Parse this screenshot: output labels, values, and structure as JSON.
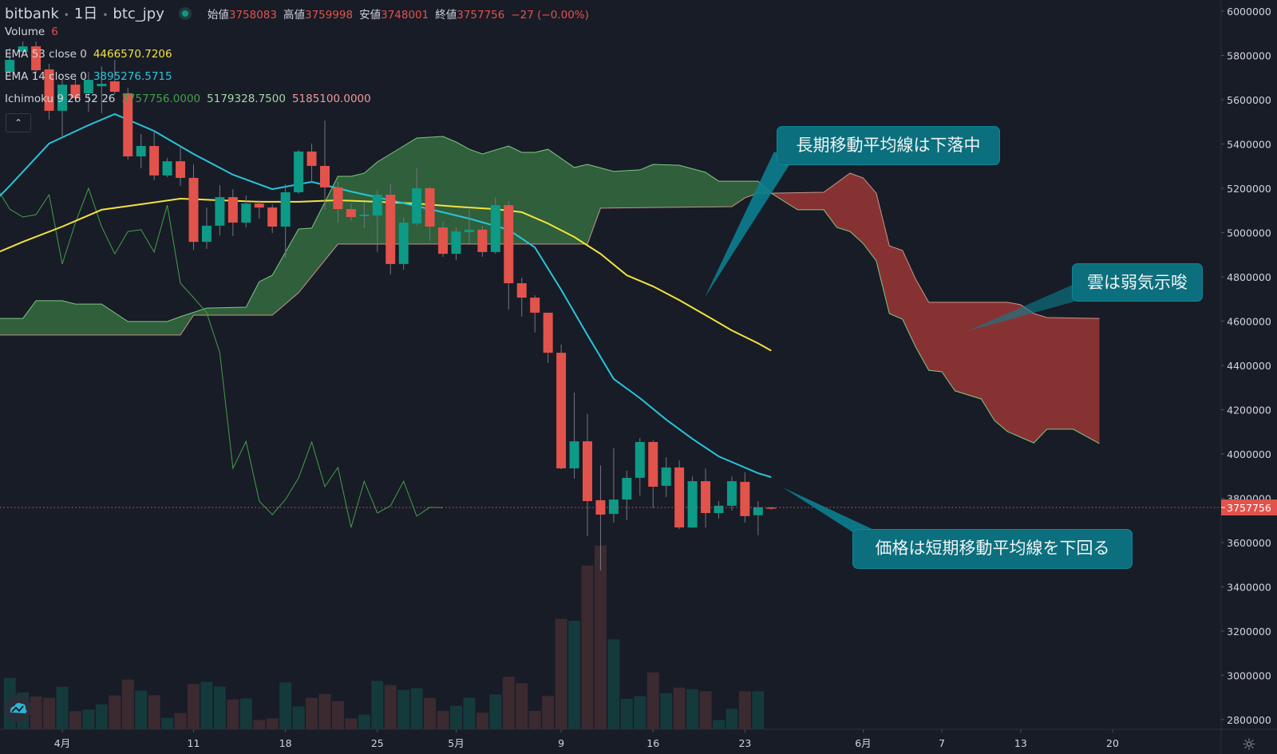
{
  "header": {
    "exchange": "bitbank",
    "interval": "1日",
    "symbol": "btc_jpy",
    "open_label": "始値",
    "open": "3758083",
    "high_label": "高値",
    "high": "3759998",
    "low_label": "安値",
    "low": "3748001",
    "close_label": "終値",
    "close": "3757756",
    "change": "−27 (−0.00%)"
  },
  "legend": {
    "volume": {
      "label": "Volume",
      "value": "6"
    },
    "ema53": {
      "label": "EMA 53 close 0",
      "value": "4466570.7206",
      "color": "#f5e33b"
    },
    "ema14": {
      "label": "EMA 14 close 0",
      "value": "3895276.5715",
      "color": "#26c6da"
    },
    "ichimoku": {
      "label": "Ichimoku 9 26 52 26",
      "v1": "3757756.0000",
      "v2": "5179328.7500",
      "v3": "5185100.0000"
    },
    "collapse_icon": "chevron-up-icon"
  },
  "annotations": {
    "a1": "長期移動平均線は下落中",
    "a2": "雲は弱気示唆",
    "a3": "価格は短期移動平均線を下回る"
  },
  "price_axis": {
    "labels": [
      "6000000",
      "5800000",
      "5600000",
      "5400000",
      "5200000",
      "5000000",
      "4800000",
      "4600000",
      "4400000",
      "4200000",
      "4000000",
      "3800000",
      "3600000",
      "3400000",
      "3200000",
      "3000000",
      "2800000"
    ],
    "last_price": "3757756"
  },
  "time_axis": [
    {
      "label": "4月",
      "date": "04-01"
    },
    {
      "label": "11",
      "date": "04-11"
    },
    {
      "label": "18",
      "date": "04-18"
    },
    {
      "label": "25",
      "date": "04-25"
    },
    {
      "label": "5月",
      "date": "05-01"
    },
    {
      "label": "9",
      "date": "05-09"
    },
    {
      "label": "16",
      "date": "05-16"
    },
    {
      "label": "23",
      "date": "05-23"
    },
    {
      "label": "6月",
      "date": "06-01"
    },
    {
      "label": "7",
      "date": "06-07"
    },
    {
      "label": "13",
      "date": "06-13"
    },
    {
      "label": "20",
      "date": "06-20"
    }
  ],
  "colors": {
    "up": "#0d9a86",
    "down": "#e2534b",
    "vol_up": "#143a3c",
    "vol_down": "#3c2a31",
    "cloud_bull": "#2f5f3b",
    "cloud_bear": "#873232",
    "span_a": "#81c784",
    "span_b": "#c9958a",
    "chikou": "#43a047",
    "ema14": "#26c6da",
    "ema53": "#f5e33b",
    "background": "#181c27"
  },
  "chart_data": {
    "type": "candlestick",
    "title": "",
    "ylim": [
      2800000,
      6000000
    ],
    "grid": false,
    "columns": [
      "date",
      "open",
      "high",
      "low",
      "close",
      "volume_relative"
    ],
    "candles": [
      [
        "03-28",
        5726000,
        5834000,
        5708000,
        5780000,
        193
      ],
      [
        "03-29",
        5816000,
        5863000,
        5798000,
        5841000,
        138
      ],
      [
        "03-30",
        5841000,
        5863000,
        5719000,
        5733000,
        123
      ],
      [
        "03-31",
        5737000,
        5762000,
        5510000,
        5550000,
        118
      ],
      [
        "04-01",
        5550000,
        5690000,
        5431000,
        5668000,
        160
      ],
      [
        "04-02",
        5668000,
        5697000,
        5589000,
        5607000,
        68
      ],
      [
        "04-03",
        5629000,
        5726000,
        5546000,
        5690000,
        74
      ],
      [
        "04-04",
        5661000,
        5751000,
        5539000,
        5672000,
        94
      ],
      [
        "04-05",
        5683000,
        5780000,
        5625000,
        5636000,
        127
      ],
      [
        "04-06",
        5629000,
        5654000,
        5330000,
        5344000,
        187
      ],
      [
        "04-07",
        5344000,
        5445000,
        5290000,
        5391000,
        145
      ],
      [
        "04-08",
        5391000,
        5463000,
        5236000,
        5258000,
        128
      ],
      [
        "04-09",
        5258000,
        5337000,
        5250000,
        5322000,
        43
      ],
      [
        "04-10",
        5322000,
        5391000,
        5211000,
        5247000,
        61
      ],
      [
        "04-11",
        5247000,
        5308000,
        4922000,
        4958000,
        170
      ],
      [
        "04-12",
        4958000,
        5113000,
        4926000,
        5031000,
        178
      ],
      [
        "04-13",
        5031000,
        5214000,
        4987000,
        5160000,
        161
      ],
      [
        "04-14",
        5160000,
        5196000,
        4984000,
        5045000,
        112
      ],
      [
        "04-15",
        5045000,
        5167000,
        5023000,
        5131000,
        116
      ],
      [
        "04-16",
        5131000,
        5146000,
        5063000,
        5113000,
        35
      ],
      [
        "04-17",
        5113000,
        5128000,
        4998000,
        5027000,
        41
      ],
      [
        "04-18",
        5027000,
        5218000,
        4886000,
        5182000,
        176
      ],
      [
        "04-19",
        5182000,
        5373000,
        5175000,
        5366000,
        86
      ],
      [
        "04-20",
        5366000,
        5402000,
        5225000,
        5301000,
        118
      ],
      [
        "04-21",
        5301000,
        5506000,
        5103000,
        5204000,
        133
      ],
      [
        "04-22",
        5204000,
        5229000,
        5045000,
        5106000,
        106
      ],
      [
        "04-23",
        5106000,
        5131000,
        5052000,
        5070000,
        41
      ],
      [
        "04-24",
        5074000,
        5135000,
        5020000,
        5081000,
        55
      ],
      [
        "04-25",
        5077000,
        5193000,
        4912000,
        5171000,
        182
      ],
      [
        "04-26",
        5171000,
        5218000,
        4811000,
        4858000,
        166
      ],
      [
        "04-27",
        4858000,
        5067000,
        4832000,
        5045000,
        148
      ],
      [
        "04-28",
        5041000,
        5290000,
        5031000,
        5200000,
        154
      ],
      [
        "04-29",
        5200000,
        5207000,
        4962000,
        5027000,
        118
      ],
      [
        "04-30",
        5023000,
        5049000,
        4890000,
        4904000,
        69
      ],
      [
        "05-01",
        4904000,
        5023000,
        4876000,
        5005000,
        88
      ],
      [
        "05-02",
        5002000,
        5113000,
        4951000,
        5013000,
        119
      ],
      [
        "05-03",
        5013000,
        5031000,
        4890000,
        4912000,
        62
      ],
      [
        "05-04",
        4912000,
        5160000,
        4904000,
        5124000,
        131
      ],
      [
        "05-05",
        5124000,
        5142000,
        4652000,
        4771000,
        197
      ],
      [
        "05-06",
        4771000,
        4796000,
        4620000,
        4706000,
        173
      ],
      [
        "05-07",
        4706000,
        4717000,
        4548000,
        4638000,
        69
      ],
      [
        "05-08",
        4638000,
        4638000,
        4411000,
        4457000,
        125
      ],
      [
        "05-09",
        4457000,
        4494000,
        3931000,
        3935000,
        415
      ],
      [
        "05-10",
        3935000,
        4277000,
        3888000,
        4057000,
        408
      ],
      [
        "05-11",
        4057000,
        4180000,
        3629000,
        3787000,
        616
      ],
      [
        "05-12",
        3791000,
        3949000,
        3474000,
        3726000,
        691
      ],
      [
        "05-13",
        3729000,
        4026000,
        3690000,
        3794000,
        338
      ],
      [
        "05-14",
        3794000,
        3924000,
        3701000,
        3892000,
        114
      ],
      [
        "05-15",
        3892000,
        4072000,
        3812000,
        4054000,
        124
      ],
      [
        "05-16",
        4054000,
        4061000,
        3755000,
        3852000,
        214
      ],
      [
        "05-17",
        3856000,
        3985000,
        3805000,
        3939000,
        136
      ],
      [
        "05-18",
        3939000,
        3971000,
        3661000,
        3668000,
        157
      ],
      [
        "05-19",
        3668000,
        3899000,
        3665000,
        3877000,
        151
      ],
      [
        "05-20",
        3877000,
        3935000,
        3668000,
        3733000,
        143
      ],
      [
        "05-21",
        3733000,
        3787000,
        3708000,
        3766000,
        35
      ],
      [
        "05-22",
        3766000,
        3899000,
        3744000,
        3877000,
        77
      ],
      [
        "05-23",
        3874000,
        3917000,
        3690000,
        3719000,
        143
      ],
      [
        "05-24",
        3723000,
        3787000,
        3633000,
        3759000,
        143
      ],
      [
        "05-25",
        3758083,
        3759998,
        3748001,
        3757756,
        1
      ]
    ],
    "ema14": [
      [
        "03-27",
        5150000
      ],
      [
        "03-28",
        5211000
      ],
      [
        "03-31",
        5402000
      ],
      [
        "04-03",
        5485000
      ],
      [
        "04-05",
        5535000
      ],
      [
        "04-08",
        5459000
      ],
      [
        "04-11",
        5355000
      ],
      [
        "04-14",
        5261000
      ],
      [
        "04-17",
        5196000
      ],
      [
        "04-20",
        5229000
      ],
      [
        "04-23",
        5185000
      ],
      [
        "04-26",
        5146000
      ],
      [
        "04-29",
        5106000
      ],
      [
        "05-02",
        5063000
      ],
      [
        "05-05",
        5013000
      ],
      [
        "05-07",
        4933000
      ],
      [
        "05-09",
        4742000
      ],
      [
        "05-11",
        4537000
      ],
      [
        "05-13",
        4339000
      ],
      [
        "05-15",
        4252000
      ],
      [
        "05-17",
        4155000
      ],
      [
        "05-19",
        4068000
      ],
      [
        "05-21",
        3989000
      ],
      [
        "05-24",
        3913000
      ],
      [
        "05-25",
        3895277
      ]
    ],
    "ema53": [
      [
        "03-27",
        4908000
      ],
      [
        "03-29",
        4958000
      ],
      [
        "04-01",
        5027000
      ],
      [
        "04-04",
        5103000
      ],
      [
        "04-07",
        5128000
      ],
      [
        "04-10",
        5153000
      ],
      [
        "04-13",
        5146000
      ],
      [
        "04-16",
        5139000
      ],
      [
        "04-19",
        5139000
      ],
      [
        "04-22",
        5146000
      ],
      [
        "04-25",
        5139000
      ],
      [
        "04-28",
        5131000
      ],
      [
        "05-01",
        5117000
      ],
      [
        "05-04",
        5106000
      ],
      [
        "05-06",
        5092000
      ],
      [
        "05-08",
        5041000
      ],
      [
        "05-10",
        4980000
      ],
      [
        "05-12",
        4904000
      ],
      [
        "05-14",
        4807000
      ],
      [
        "05-16",
        4757000
      ],
      [
        "05-18",
        4695000
      ],
      [
        "05-20",
        4627000
      ],
      [
        "05-22",
        4558000
      ],
      [
        "05-24",
        4500000
      ],
      [
        "05-25",
        4466571
      ]
    ],
    "ichimoku_span_a": [
      [
        "03-27",
        4612000
      ],
      [
        "03-29",
        4612000
      ],
      [
        "03-30",
        4692000
      ],
      [
        "04-01",
        4692000
      ],
      [
        "04-02",
        4677000
      ],
      [
        "04-04",
        4677000
      ],
      [
        "04-06",
        4598000
      ],
      [
        "04-09",
        4598000
      ],
      [
        "04-10",
        4620000
      ],
      [
        "04-12",
        4659000
      ],
      [
        "04-15",
        4663000
      ],
      [
        "04-16",
        4778000
      ],
      [
        "04-17",
        4807000
      ],
      [
        "04-19",
        5016000
      ],
      [
        "04-20",
        5020000
      ],
      [
        "04-22",
        5254000
      ],
      [
        "04-23",
        5254000
      ],
      [
        "04-24",
        5268000
      ],
      [
        "04-25",
        5319000
      ],
      [
        "04-27",
        5391000
      ],
      [
        "04-28",
        5427000
      ],
      [
        "04-30",
        5434000
      ],
      [
        "05-01",
        5409000
      ],
      [
        "05-02",
        5376000
      ],
      [
        "05-03",
        5355000
      ],
      [
        "05-05",
        5391000
      ],
      [
        "05-06",
        5362000
      ],
      [
        "05-07",
        5362000
      ],
      [
        "05-08",
        5376000
      ],
      [
        "05-10",
        5294000
      ],
      [
        "05-11",
        5308000
      ],
      [
        "05-13",
        5276000
      ],
      [
        "05-15",
        5283000
      ],
      [
        "05-16",
        5308000
      ],
      [
        "05-18",
        5304000
      ],
      [
        "05-20",
        5272000
      ],
      [
        "05-21",
        5232000
      ],
      [
        "05-24",
        5232000
      ],
      [
        "05-25",
        5178000
      ],
      [
        "05-27",
        5103000
      ],
      [
        "05-29",
        5103000
      ],
      [
        "05-30",
        5023000
      ],
      [
        "05-31",
        5005000
      ],
      [
        "06-01",
        4951000
      ],
      [
        "06-02",
        4872000
      ],
      [
        "06-03",
        4634000
      ],
      [
        "06-04",
        4609000
      ],
      [
        "06-05",
        4483000
      ],
      [
        "06-06",
        4378000
      ],
      [
        "06-07",
        4371000
      ],
      [
        "06-08",
        4285000
      ],
      [
        "06-10",
        4248000
      ],
      [
        "06-11",
        4151000
      ],
      [
        "06-12",
        4101000
      ],
      [
        "06-14",
        4050000
      ],
      [
        "06-15",
        4112000
      ],
      [
        "06-17",
        4112000
      ],
      [
        "06-19",
        4047000
      ]
    ],
    "ichimoku_span_b": [
      [
        "03-27",
        4537000
      ],
      [
        "04-10",
        4537000
      ],
      [
        "04-11",
        4627000
      ],
      [
        "04-17",
        4627000
      ],
      [
        "04-19",
        4728000
      ],
      [
        "04-22",
        4948000
      ],
      [
        "05-11",
        4948000
      ],
      [
        "05-12",
        5110000
      ],
      [
        "05-22",
        5117000
      ],
      [
        "05-23",
        5157000
      ],
      [
        "05-24",
        5178000
      ],
      [
        "05-25",
        5178000
      ],
      [
        "05-29",
        5182000
      ],
      [
        "05-31",
        5268000
      ],
      [
        "06-01",
        5247000
      ],
      [
        "06-02",
        5178000
      ],
      [
        "06-03",
        4940000
      ],
      [
        "06-04",
        4919000
      ],
      [
        "06-05",
        4789000
      ],
      [
        "06-06",
        4685000
      ],
      [
        "06-12",
        4685000
      ],
      [
        "06-13",
        4674000
      ],
      [
        "06-14",
        4634000
      ],
      [
        "06-15",
        4616000
      ],
      [
        "06-19",
        4612000
      ]
    ]
  }
}
